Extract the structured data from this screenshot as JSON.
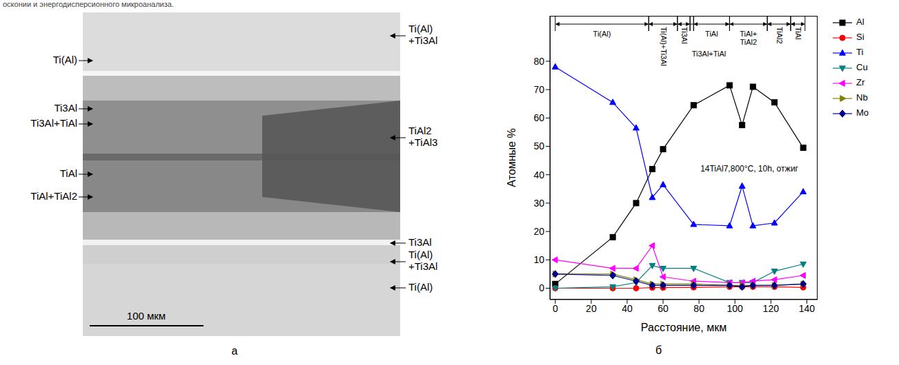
{
  "header_fragment": "осконии и энергодисперсионного микроанализа.",
  "panel_a": {
    "letter": "а",
    "labels_left": [
      "Ti(Al)",
      "Ti3Al",
      "Ti3Al+TiAl",
      "TiAl",
      "TiAl+TiAl2"
    ],
    "labels_right": [
      "Ti(Al)+Ti3Al",
      "TiAl2+TiAl3",
      "Ti3Al",
      "Ti(Al)+Ti3Al",
      "Ti(Al)"
    ],
    "scale_bar": "100 мкм"
  },
  "chart_data": {
    "type": "line",
    "letter": "б",
    "annotation": "14TiAl7,800°C, 10h, отжиг",
    "x_label": "Расстояние, мкм",
    "y_label": "Атомные %",
    "x": [
      0,
      32,
      45,
      54,
      60,
      77,
      97,
      104,
      110,
      122,
      138
    ],
    "xlim": [
      -3,
      146
    ],
    "xticks": [
      0,
      20,
      40,
      60,
      80,
      100,
      120,
      140
    ],
    "ylim": [
      -4,
      96
    ],
    "yticks": [
      0,
      10,
      20,
      30,
      40,
      50,
      60,
      70,
      80
    ],
    "grid": false,
    "legend": "right",
    "phase_zones": [
      {
        "label": "Ti(Al)",
        "start": 0,
        "end": 52
      },
      {
        "label": "Ti(Al)+Ti3Al",
        "start": 52,
        "end": 68
      },
      {
        "label": "Ti3Al",
        "start": 68,
        "end": 75
      },
      {
        "label": "Ti3Al+TiAl",
        "start": 75,
        "end": 77
      },
      {
        "label": "TiAl",
        "start": 77,
        "end": 97
      },
      {
        "label": "TiAl+TiAl2",
        "start": 97,
        "end": 118
      },
      {
        "label": "TiAl2",
        "start": 118,
        "end": 131
      },
      {
        "label": "TiAl",
        "start": 131,
        "end": 139
      }
    ],
    "series": [
      {
        "name": "Al",
        "color": "#000000",
        "marker": "square",
        "values": [
          1.5,
          18,
          30,
          42,
          49,
          64.5,
          71.5,
          57.5,
          71,
          65.5,
          49.5
        ]
      },
      {
        "name": "Si",
        "color": "#ff0000",
        "marker": "circle",
        "values": [
          0,
          0,
          0,
          0.2,
          0.2,
          0.3,
          0.5,
          0.5,
          0.5,
          0.5,
          0.3
        ]
      },
      {
        "name": "Ti",
        "color": "#0000ff",
        "marker": "triangle",
        "values": [
          78,
          65.5,
          56.5,
          32,
          36.5,
          22.5,
          22,
          36,
          22,
          23,
          34
        ]
      },
      {
        "name": "Cu",
        "color": "#008080",
        "marker": "triangle-down",
        "values": [
          0,
          0.5,
          2,
          8,
          7,
          7,
          2,
          2,
          2,
          6,
          8.5
        ]
      },
      {
        "name": "Zr",
        "color": "#ff00ff",
        "marker": "triangle-left",
        "values": [
          10,
          7,
          7,
          15,
          4,
          2.5,
          2,
          2,
          2.5,
          3,
          4.5
        ]
      },
      {
        "name": "Nb",
        "color": "#808000",
        "marker": "triangle-right",
        "values": [
          5,
          5,
          3,
          1.5,
          1.5,
          1.5,
          1,
          1,
          1,
          1,
          1.5
        ]
      },
      {
        "name": "Mo",
        "color": "#00008b",
        "marker": "diamond",
        "values": [
          5,
          4.5,
          2.5,
          1,
          1,
          1,
          1,
          0.5,
          1,
          1,
          1.5
        ]
      }
    ]
  }
}
